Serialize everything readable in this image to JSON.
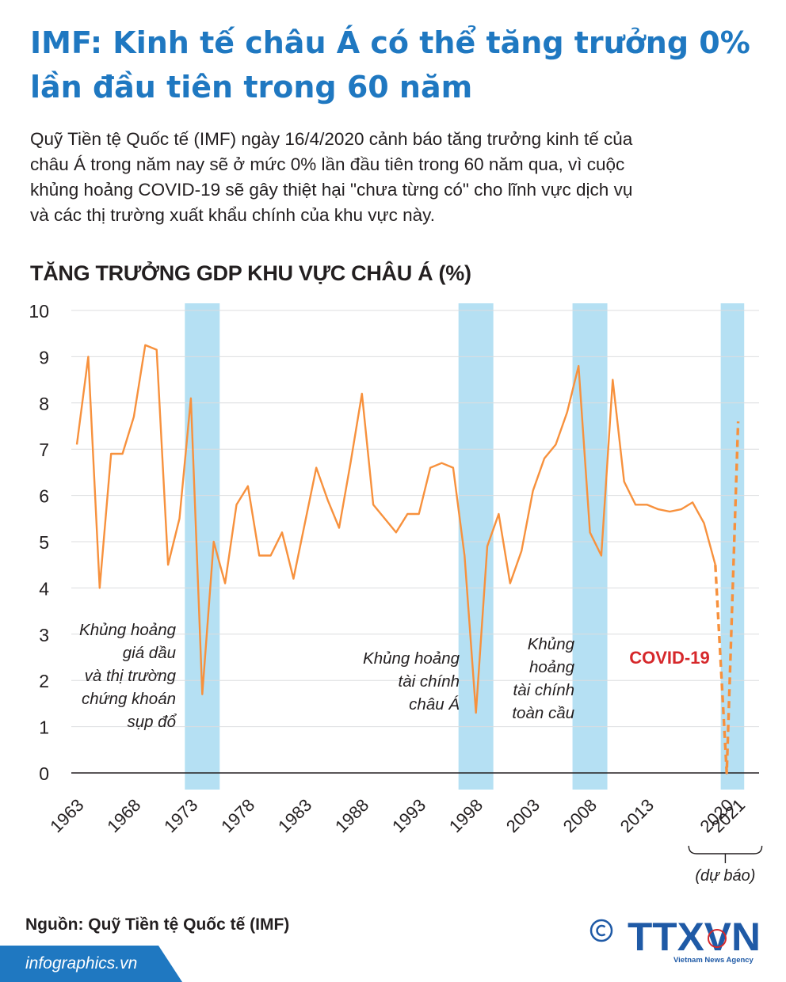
{
  "header": {
    "title_line1": "IMF: Kinh tế châu Á có thể tăng trưởng 0%",
    "title_line2": "lần đầu tiên trong 60 năm"
  },
  "intro": {
    "line1": "Quỹ Tiền tệ Quốc tế (IMF) ngày 16/4/2020 cảnh báo tăng trưởng kinh tế của",
    "line2": "châu Á trong năm nay sẽ ở mức 0% lần đầu tiên trong 60 năm qua, vì cuộc",
    "line3": "khủng hoảng COVID-19 sẽ gây thiệt hại \"chưa từng có\" cho lĩnh vực dịch vụ",
    "line4": "và các thị trường xuất khẩu chính của khu vực này."
  },
  "chart_data": {
    "type": "line",
    "title": "TĂNG TRƯỞNG GDP KHU VỰC CHÂU Á (%)",
    "xlabel": "",
    "ylabel": "",
    "ylim": [
      0,
      10
    ],
    "y_ticks": [
      "10",
      "9",
      "8",
      "7",
      "6",
      "5",
      "4",
      "3",
      "2",
      "1",
      "0"
    ],
    "x_tick_labels": [
      "1963",
      "1968",
      "1973",
      "1978",
      "1983",
      "1988",
      "1993",
      "1998",
      "2003",
      "2008",
      "2013",
      "2020",
      "2021"
    ],
    "grid": true,
    "series": [
      {
        "x": [
          1963,
          1964,
          1965,
          1966,
          1967,
          1968,
          1969,
          1970,
          1971,
          1972,
          1973,
          1974,
          1975,
          1976,
          1977,
          1978,
          1979,
          1980,
          1981,
          1982,
          1983,
          1984,
          1985,
          1986,
          1987,
          1988,
          1989,
          1990,
          1991,
          1992,
          1993,
          1994,
          1995,
          1996,
          1997,
          1998,
          1999,
          2000,
          2001,
          2002,
          2003,
          2004,
          2005,
          2006,
          2007,
          2008,
          2009,
          2010,
          2011,
          2012,
          2013,
          2014,
          2015,
          2016,
          2017,
          2018,
          2019
        ],
        "values": [
          7.1,
          9.0,
          4.0,
          6.9,
          6.9,
          7.7,
          9.25,
          9.15,
          4.5,
          5.5,
          8.1,
          1.7,
          5.0,
          4.1,
          5.8,
          6.2,
          4.7,
          4.7,
          5.2,
          4.2,
          5.4,
          6.6,
          5.9,
          5.3,
          6.7,
          8.2,
          5.8,
          5.5,
          5.2,
          5.6,
          5.6,
          6.6,
          6.7,
          6.6,
          4.7,
          1.3,
          4.9,
          5.6,
          4.1,
          4.8,
          6.1,
          6.8,
          7.1,
          7.8,
          8.8,
          5.2,
          4.7,
          8.5,
          6.3,
          5.8,
          5.8,
          5.7,
          5.65,
          5.7,
          5.85,
          5.4,
          4.5
        ],
        "color": "#f7913d"
      },
      {
        "x": [
          2019,
          2020,
          2021
        ],
        "values": [
          4.5,
          0.0,
          7.6
        ],
        "style": "dashed",
        "color": "#f7913d"
      }
    ],
    "highlight_bands": [
      {
        "from": 1973,
        "to": 1975,
        "label": [
          "Khủng hoảng",
          "giá dầu",
          "và thị trường",
          "chứng khoán",
          "sụp đổ"
        ]
      },
      {
        "from": 1997,
        "to": 1999,
        "label": [
          "Khủng hoảng",
          "tài chính",
          "châu Á"
        ]
      },
      {
        "from": 2007,
        "to": 2009,
        "label": [
          "Khủng",
          "hoảng",
          "tài chính",
          "toàn cầu"
        ]
      },
      {
        "from": 2020,
        "to": 2021,
        "label": [
          "COVID-19"
        ]
      }
    ],
    "band_color": "#b5e0f3",
    "forecast_label": "(dự báo)"
  },
  "footer": {
    "source": "Nguồn: Quỹ Tiền tệ Quốc tế (IMF)",
    "copyright_symbol": "©",
    "logo_text": "TTXVN",
    "logo_subtext": "Vietnam News Agency",
    "site": "infographics.vn",
    "accent_color": "#1f78c1",
    "logo_color": "#1f5aa6",
    "covid_color": "#d6282b"
  }
}
